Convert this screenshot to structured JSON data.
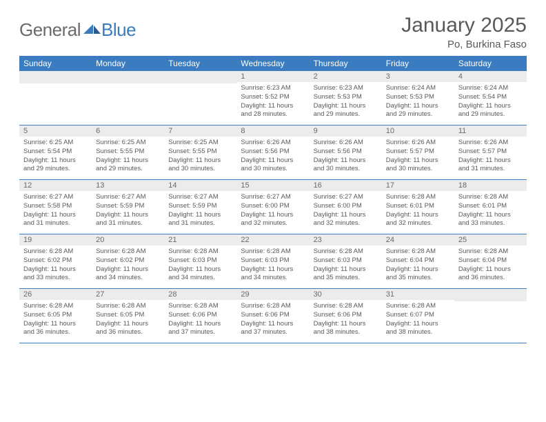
{
  "logo": {
    "general": "General",
    "blue": "Blue"
  },
  "title": "January 2025",
  "location": "Po, Burkina Faso",
  "header_bg": "#3b7bbf",
  "weekdays": [
    "Sunday",
    "Monday",
    "Tuesday",
    "Wednesday",
    "Thursday",
    "Friday",
    "Saturday"
  ],
  "weeks": [
    [
      null,
      null,
      null,
      {
        "n": "1",
        "sr": "6:23 AM",
        "ss": "5:52 PM",
        "dl": "11 hours and 28 minutes."
      },
      {
        "n": "2",
        "sr": "6:23 AM",
        "ss": "5:53 PM",
        "dl": "11 hours and 29 minutes."
      },
      {
        "n": "3",
        "sr": "6:24 AM",
        "ss": "5:53 PM",
        "dl": "11 hours and 29 minutes."
      },
      {
        "n": "4",
        "sr": "6:24 AM",
        "ss": "5:54 PM",
        "dl": "11 hours and 29 minutes."
      }
    ],
    [
      {
        "n": "5",
        "sr": "6:25 AM",
        "ss": "5:54 PM",
        "dl": "11 hours and 29 minutes."
      },
      {
        "n": "6",
        "sr": "6:25 AM",
        "ss": "5:55 PM",
        "dl": "11 hours and 29 minutes."
      },
      {
        "n": "7",
        "sr": "6:25 AM",
        "ss": "5:55 PM",
        "dl": "11 hours and 30 minutes."
      },
      {
        "n": "8",
        "sr": "6:26 AM",
        "ss": "5:56 PM",
        "dl": "11 hours and 30 minutes."
      },
      {
        "n": "9",
        "sr": "6:26 AM",
        "ss": "5:56 PM",
        "dl": "11 hours and 30 minutes."
      },
      {
        "n": "10",
        "sr": "6:26 AM",
        "ss": "5:57 PM",
        "dl": "11 hours and 30 minutes."
      },
      {
        "n": "11",
        "sr": "6:26 AM",
        "ss": "5:57 PM",
        "dl": "11 hours and 31 minutes."
      }
    ],
    [
      {
        "n": "12",
        "sr": "6:27 AM",
        "ss": "5:58 PM",
        "dl": "11 hours and 31 minutes."
      },
      {
        "n": "13",
        "sr": "6:27 AM",
        "ss": "5:59 PM",
        "dl": "11 hours and 31 minutes."
      },
      {
        "n": "14",
        "sr": "6:27 AM",
        "ss": "5:59 PM",
        "dl": "11 hours and 31 minutes."
      },
      {
        "n": "15",
        "sr": "6:27 AM",
        "ss": "6:00 PM",
        "dl": "11 hours and 32 minutes."
      },
      {
        "n": "16",
        "sr": "6:27 AM",
        "ss": "6:00 PM",
        "dl": "11 hours and 32 minutes."
      },
      {
        "n": "17",
        "sr": "6:28 AM",
        "ss": "6:01 PM",
        "dl": "11 hours and 32 minutes."
      },
      {
        "n": "18",
        "sr": "6:28 AM",
        "ss": "6:01 PM",
        "dl": "11 hours and 33 minutes."
      }
    ],
    [
      {
        "n": "19",
        "sr": "6:28 AM",
        "ss": "6:02 PM",
        "dl": "11 hours and 33 minutes."
      },
      {
        "n": "20",
        "sr": "6:28 AM",
        "ss": "6:02 PM",
        "dl": "11 hours and 34 minutes."
      },
      {
        "n": "21",
        "sr": "6:28 AM",
        "ss": "6:03 PM",
        "dl": "11 hours and 34 minutes."
      },
      {
        "n": "22",
        "sr": "6:28 AM",
        "ss": "6:03 PM",
        "dl": "11 hours and 34 minutes."
      },
      {
        "n": "23",
        "sr": "6:28 AM",
        "ss": "6:03 PM",
        "dl": "11 hours and 35 minutes."
      },
      {
        "n": "24",
        "sr": "6:28 AM",
        "ss": "6:04 PM",
        "dl": "11 hours and 35 minutes."
      },
      {
        "n": "25",
        "sr": "6:28 AM",
        "ss": "6:04 PM",
        "dl": "11 hours and 36 minutes."
      }
    ],
    [
      {
        "n": "26",
        "sr": "6:28 AM",
        "ss": "6:05 PM",
        "dl": "11 hours and 36 minutes."
      },
      {
        "n": "27",
        "sr": "6:28 AM",
        "ss": "6:05 PM",
        "dl": "11 hours and 36 minutes."
      },
      {
        "n": "28",
        "sr": "6:28 AM",
        "ss": "6:06 PM",
        "dl": "11 hours and 37 minutes."
      },
      {
        "n": "29",
        "sr": "6:28 AM",
        "ss": "6:06 PM",
        "dl": "11 hours and 37 minutes."
      },
      {
        "n": "30",
        "sr": "6:28 AM",
        "ss": "6:06 PM",
        "dl": "11 hours and 38 minutes."
      },
      {
        "n": "31",
        "sr": "6:28 AM",
        "ss": "6:07 PM",
        "dl": "11 hours and 38 minutes."
      },
      null
    ]
  ],
  "labels": {
    "sunrise": "Sunrise:",
    "sunset": "Sunset:",
    "daylight": "Daylight:"
  }
}
